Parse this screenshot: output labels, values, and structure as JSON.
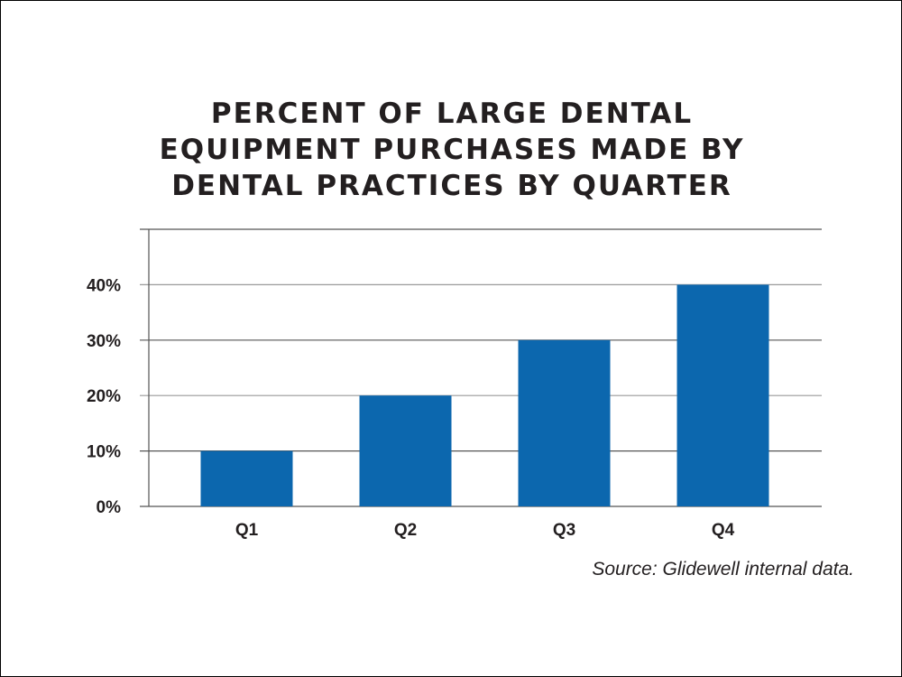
{
  "chart_data": {
    "type": "bar",
    "title_lines": [
      "Percent of large dental",
      "equipment purchases made by",
      "dental practices by quarter"
    ],
    "categories": [
      "Q1",
      "Q2",
      "Q3",
      "Q4"
    ],
    "values": [
      10,
      20,
      30,
      40
    ],
    "ylim": [
      0,
      50
    ],
    "yticks": [
      0,
      10,
      20,
      30,
      40
    ],
    "ytick_labels": [
      "0%",
      "10%",
      "20%",
      "30%",
      "40%"
    ],
    "xlabel": "",
    "ylabel": "",
    "grid": true,
    "bar_color": "#0c67ae",
    "source": "Source: Glidewell internal data."
  }
}
